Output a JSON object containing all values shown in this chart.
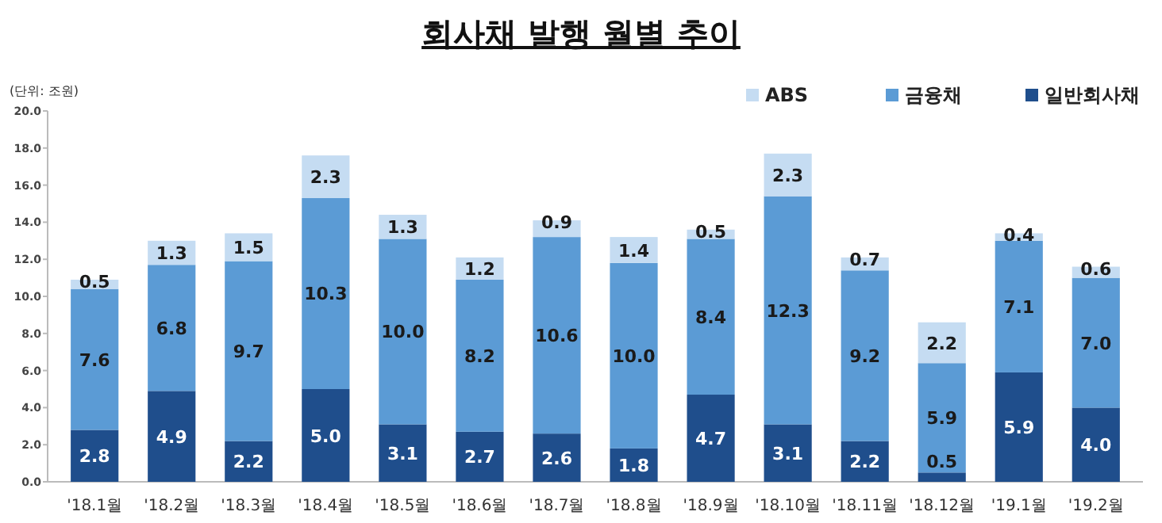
{
  "chart_data": {
    "type": "bar",
    "title": "회사채 발행 월별 추이",
    "annotations": [
      "(단위: 조원)"
    ],
    "stacked": true,
    "legend": "top right",
    "grid": false,
    "categories": [
      "'18.1월",
      "'18.2월",
      "'18.3월",
      "'18.4월",
      "'18.5월",
      "'18.6월",
      "'18.7월",
      "'18.8월",
      "'18.9월",
      "'18.10월",
      "'18.11월",
      "'18.12월",
      "'19.1월",
      "'19.2월"
    ],
    "ylim": [
      0,
      20
    ],
    "yticks": [
      {
        "value": 0,
        "label": "0.0"
      },
      {
        "value": 2,
        "label": "2.0"
      },
      {
        "value": 4,
        "label": "4.0"
      },
      {
        "value": 6,
        "label": "6.0"
      },
      {
        "value": 8,
        "label": "8.0"
      },
      {
        "value": 10,
        "label": "10.0"
      },
      {
        "value": 12,
        "label": "12.0"
      },
      {
        "value": 14,
        "label": "14.0"
      },
      {
        "value": 16,
        "label": "16.0"
      },
      {
        "value": 18,
        "label": "18.0"
      },
      {
        "value": 20,
        "label": "20.0"
      }
    ],
    "series": [
      {
        "name": "일반회사채",
        "color": "#1f4e8c",
        "values": [
          2.8,
          4.9,
          2.2,
          5.0,
          3.1,
          2.7,
          2.6,
          1.8,
          4.7,
          3.1,
          2.2,
          0.5,
          5.9,
          4.0
        ],
        "value_labels": [
          "2.8",
          "4.9",
          "2.2",
          "5.0",
          "3.1",
          "2.7",
          "2.6",
          "1.8",
          "4.7",
          "3.1",
          "2.2",
          "0.5",
          "5.9",
          "4.0"
        ]
      },
      {
        "name": "금융채",
        "color": "#5b9bd5",
        "values": [
          7.6,
          6.8,
          9.7,
          10.3,
          10.0,
          8.2,
          10.6,
          10.0,
          8.4,
          12.3,
          9.2,
          5.9,
          7.1,
          7.0
        ],
        "value_labels": [
          "7.6",
          "6.8",
          "9.7",
          "10.3",
          "10.0",
          "8.2",
          "10.6",
          "10.0",
          "8.4",
          "12.3",
          "9.2",
          "5.9",
          "7.1",
          "7.0"
        ]
      },
      {
        "name": "ABS",
        "color": "#c5dcf2",
        "values": [
          0.5,
          1.3,
          1.5,
          2.3,
          1.3,
          1.2,
          0.9,
          1.4,
          0.5,
          2.3,
          0.7,
          2.2,
          0.4,
          0.6
        ],
        "value_labels": [
          "0.5",
          "1.3",
          "1.5",
          "2.3",
          "1.3",
          "1.2",
          "0.9",
          "1.4",
          "0.5",
          "2.3",
          "0.7",
          "2.2",
          "0.4",
          "0.6"
        ]
      }
    ]
  }
}
